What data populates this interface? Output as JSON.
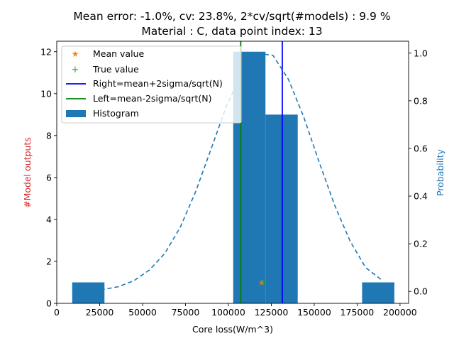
{
  "chart_data": {
    "type": "bar",
    "title_line1": "Mean error: -1.0%, cv: 23.8%, 2*cv/sqrt(#models) : 9.9 %",
    "title_line2": "Material : C, data point index: 13",
    "xlabel": "Core loss(W/m^3)",
    "ylabel_left": "#Model outputs",
    "ylabel_right": "Probability",
    "xlim": [
      0,
      205000
    ],
    "ylim_left": [
      0,
      12.5
    ],
    "ylim_right": [
      -0.05,
      1.05
    ],
    "x_ticks": [
      0,
      25000,
      50000,
      75000,
      100000,
      125000,
      150000,
      175000,
      200000
    ],
    "y_ticks_left": [
      0,
      2,
      4,
      6,
      8,
      10,
      12
    ],
    "y_ticks_right": [
      0.0,
      0.2,
      0.4,
      0.6,
      0.8,
      1.0
    ],
    "histogram": {
      "name": "Histogram",
      "bins": [
        {
          "x0": 9000,
          "x1": 27800,
          "count": 1
        },
        {
          "x0": 102800,
          "x1": 121600,
          "count": 12
        },
        {
          "x0": 121600,
          "x1": 140400,
          "count": 9
        },
        {
          "x0": 177900,
          "x1": 196700,
          "count": 1
        }
      ]
    },
    "gaussian": {
      "x": [
        9000,
        18000,
        27000,
        36000,
        45000,
        54000,
        63000,
        72000,
        81000,
        90000,
        99000,
        108000,
        117000,
        126000,
        135000,
        144000,
        153000,
        162000,
        171000,
        180000,
        189000
      ],
      "y": [
        0.0,
        0.002,
        0.008,
        0.02,
        0.045,
        0.09,
        0.16,
        0.27,
        0.42,
        0.6,
        0.78,
        0.92,
        1.0,
        0.99,
        0.89,
        0.73,
        0.54,
        0.36,
        0.21,
        0.1,
        0.05
      ]
    },
    "mean_value": {
      "name": "Mean value",
      "x": 119500,
      "y": 1.0
    },
    "true_value": {
      "name": "True value",
      "x": 120600,
      "y": 1.0
    },
    "right_line": {
      "name": "Right=mean+2sigma/sqrt(N)",
      "x": 131400
    },
    "left_line": {
      "name": "Left=mean-2sigma/sqrt(N)",
      "x": 107200
    },
    "legend_position": "top-left",
    "colors": {
      "histogram": "#1f77b4",
      "gaussian": "#1f77b4",
      "mean": "#ff7f0e",
      "true": "#2ca02c",
      "right": "#0000ff",
      "left": "#008000",
      "left_axis_label": "#d62728",
      "right_axis_label": "#1f77b4"
    }
  }
}
